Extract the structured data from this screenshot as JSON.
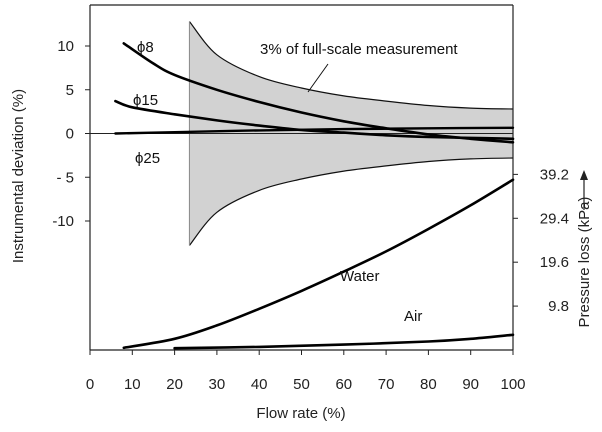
{
  "chart_data": {
    "type": "line",
    "xlabel": "Flow rate (%)",
    "ylabel_left": "Instrumental deviation (%)",
    "ylabel_right": "Pressure loss (kPa)",
    "xlim": [
      0,
      100
    ],
    "ylim_left": [
      -10,
      10
    ],
    "ylim_right": [
      0,
      39.2
    ],
    "x_ticks": [
      0,
      10,
      20,
      30,
      40,
      50,
      60,
      70,
      80,
      90,
      100
    ],
    "x_tick_labels": [
      "0",
      "10",
      "20",
      "30",
      "40",
      "50",
      "60",
      "70",
      "80",
      "90",
      "100"
    ],
    "y_left_ticks": [
      10,
      5,
      0,
      -5,
      -10
    ],
    "y_left_tick_labels": [
      "10",
      "5",
      "0",
      "- 5",
      "-10"
    ],
    "y_right_ticks": [
      39.2,
      29.4,
      19.6,
      9.8
    ],
    "y_right_tick_labels": [
      "39.2",
      "29.4",
      "19.6",
      "9.8"
    ],
    "band": {
      "label": "3% of full-scale measurement",
      "x": [
        23.5,
        30,
        40,
        50,
        60,
        70,
        80,
        90,
        100
      ],
      "upper": [
        12.8,
        9.0,
        6.5,
        5.2,
        4.3,
        3.7,
        3.2,
        2.9,
        2.8
      ],
      "lower": [
        -12.8,
        -9.0,
        -6.5,
        -5.2,
        -4.3,
        -3.7,
        -3.2,
        -2.9,
        -2.8
      ]
    },
    "deviation_series": [
      {
        "name": "ϕ8",
        "x": [
          8,
          15,
          20,
          30,
          40,
          50,
          60,
          70,
          80,
          90,
          100
        ],
        "y": [
          10.3,
          8.0,
          6.7,
          5.0,
          3.6,
          2.4,
          1.4,
          0.6,
          -0.1,
          -0.6,
          -1.0
        ]
      },
      {
        "name": "ϕ15",
        "x": [
          6,
          10,
          20,
          30,
          40,
          50,
          60,
          70,
          80,
          90,
          100
        ],
        "y": [
          3.7,
          3.0,
          2.2,
          1.5,
          0.9,
          0.4,
          0.1,
          -0.2,
          -0.4,
          -0.5,
          -0.6
        ]
      },
      {
        "name": "ϕ25",
        "x": [
          6,
          20,
          40,
          60,
          80,
          100
        ],
        "y": [
          0.0,
          0.15,
          0.35,
          0.5,
          0.6,
          0.65
        ]
      }
    ],
    "pressure_series": [
      {
        "name": "Water",
        "x": [
          8,
          20,
          30,
          40,
          50,
          60,
          70,
          80,
          90,
          100
        ],
        "y": [
          0.5,
          2.5,
          5.5,
          9.2,
          13.2,
          17.5,
          22.0,
          27.0,
          32.3,
          38.0
        ]
      },
      {
        "name": "Air",
        "x": [
          20,
          40,
          60,
          80,
          90,
          100
        ],
        "y": [
          0.4,
          0.7,
          1.2,
          1.9,
          2.5,
          3.4
        ]
      }
    ],
    "grid": false
  }
}
